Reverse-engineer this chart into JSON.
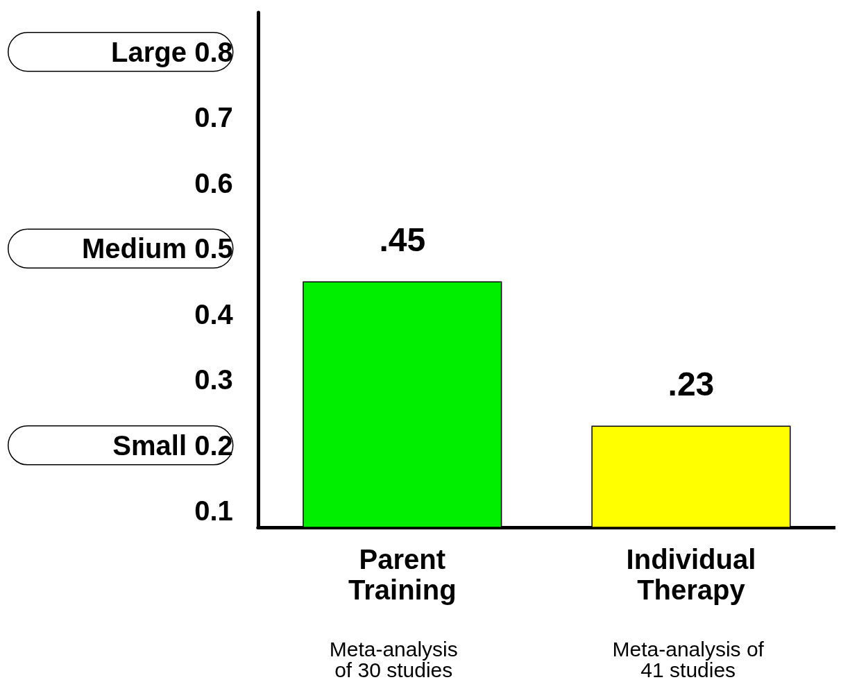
{
  "chart_data": {
    "type": "bar",
    "categories": [
      "Parent\nTraining",
      "Individual\nTherapy"
    ],
    "values": [
      0.45,
      0.23
    ],
    "colors": [
      "#00ee00",
      "#ffff00"
    ],
    "value_labels": [
      ".45",
      ".23"
    ],
    "ylim": [
      0.075,
      0.86
    ],
    "yticks": [
      {
        "value": 0.1,
        "label": "0.1"
      },
      {
        "value": 0.2,
        "label": "Small 0.2"
      },
      {
        "value": 0.3,
        "label": "0.3"
      },
      {
        "value": 0.4,
        "label": "0.4"
      },
      {
        "value": 0.5,
        "label": "Medium 0.5"
      },
      {
        "value": 0.6,
        "label": "0.6"
      },
      {
        "value": 0.7,
        "label": "0.7"
      },
      {
        "value": 0.8,
        "label": "Large 0.8"
      }
    ],
    "annotations": [
      "Meta-analysis\nof 30 studies",
      "Meta-analysis of\n41 studies"
    ],
    "grid": false
  }
}
